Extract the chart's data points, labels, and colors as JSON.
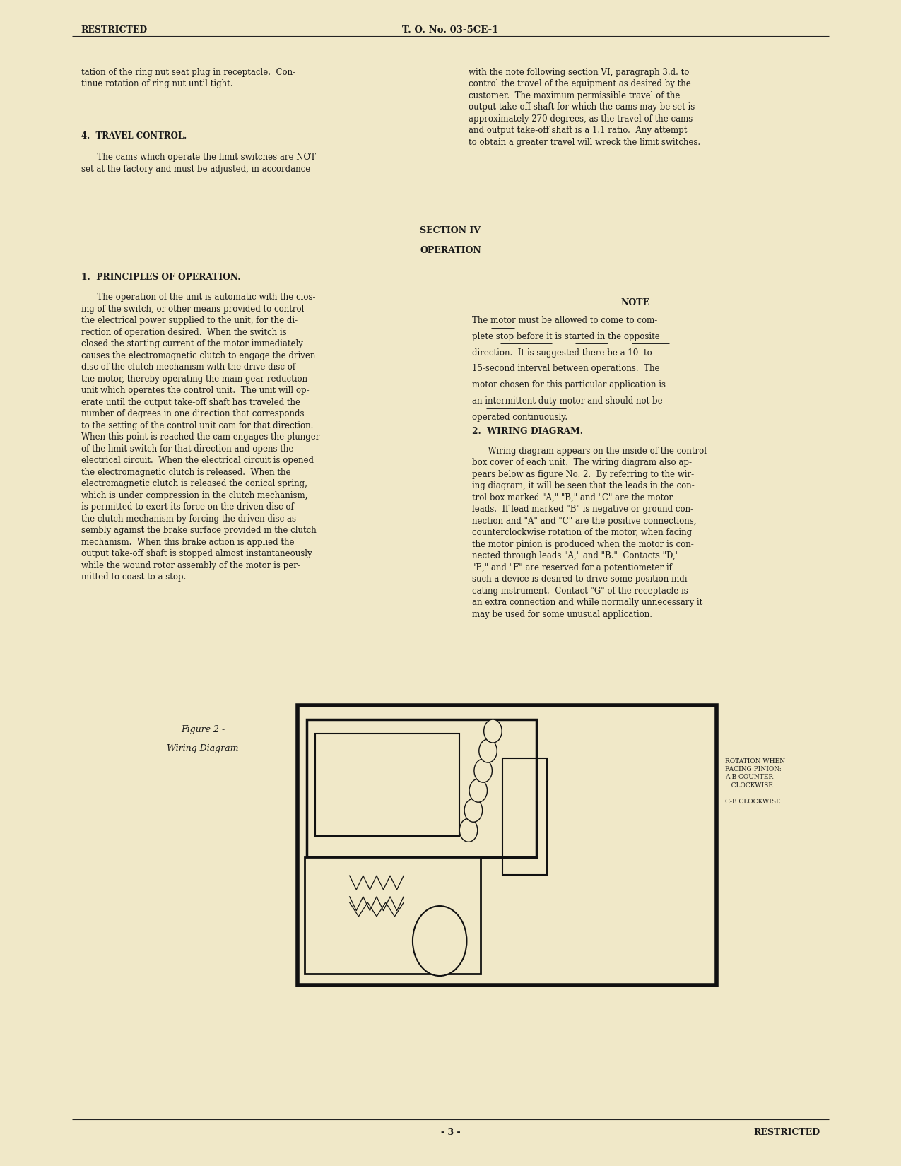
{
  "bg_color": "#f0e8c8",
  "text_color": "#1a1a1a",
  "header_restricted_left": "RESTRICTED",
  "header_to_center": "T. O. No. 03-5CE-1",
  "footer_page_num": "- 3 -",
  "footer_restricted_right": "RESTRICTED",
  "para_intro_col1": "tation of the ring nut seat plug in receptacle.  Con-\ntinue rotation of ring nut until tight.",
  "para_intro_col2": "with the note following section VI, paragraph 3.d. to\ncontrol the travel of the equipment as desired by the\ncustomer.  The maximum permissible travel of the\noutput take-off shaft for which the cams may be set is\napproximately 270 degrees, as the travel of the cams\nand output take-off shaft is a 1.1 ratio.  Any attempt\nto obtain a greater travel will wreck the limit switches.",
  "section_heading": "SECTION IV",
  "operation_heading": "OPERATION",
  "principles_heading": "1.  PRINCIPLES OF OPERATION.",
  "principles_col1_indent": "      The operation of the unit is automatic with the clos-\ning of the switch, or other means provided to control\nthe electrical power supplied to the unit, for the di-\nrection of operation desired.  When the switch is\nclosed the starting current of the motor immediately\ncauses the electromagnetic clutch to engage the driven\ndisc of the clutch mechanism with the drive disc of\nthe motor, thereby operating the main gear reduction\nunit which operates the control unit.  The unit will op-\nerate until the output take-off shaft has traveled the\nnumber of degrees in one direction that corresponds\nto the setting of the control unit cam for that direction.\nWhen this point is reached the cam engages the plunger\nof the limit switch for that direction and opens the\nelectrical circuit.  When the electrical circuit is opened\nthe electromagnetic clutch is released.  When the\nelectromagnetic clutch is released the conical spring,\nwhich is under compression in the clutch mechanism,\nis permitted to exert its force on the driven disc of\nthe clutch mechanism by forcing the driven disc as-\nsembly against the brake surface provided in the clutch\nmechanism.  When this brake action is applied the\noutput take-off shaft is stopped almost instantaneously\nwhile the wound rotor assembly of the motor is per-\nmitted to coast to a stop.",
  "note_heading": "NOTE",
  "note_line1": "The motor must be allowed to come to com-",
  "note_line2": "plete stop before it is started in the opposite",
  "note_line3": "direction.  It is suggested there be a 10- to",
  "note_line4": "15-second interval between operations.  The",
  "note_line5": "motor chosen for this particular application is",
  "note_line6": "an intermittent duty motor and should not be",
  "note_line7": "operated continuously.",
  "wiring_heading": "2.  WIRING DIAGRAM.",
  "wiring_col2": "      Wiring diagram appears on the inside of the control\nbox cover of each unit.  The wiring diagram also ap-\npears below as figure No. 2.  By referring to the wir-\ning diagram, it will be seen that the leads in the con-\ntrol box marked \"A,\" \"B,\" and \"C\" are the motor\nleads.  If lead marked \"B\" is negative or ground con-\nnection and \"A\" and \"C\" are the positive connections,\ncounterclockwise rotation of the motor, when facing\nthe motor pinion is produced when the motor is con-\nnected through leads \"A,\" and \"B.\"  Contacts \"D,\"\n\"E,\" and \"F\" are reserved for a potentiometer if\nsuch a device is desired to drive some position indi-\ncating instrument.  Contact \"G\" of the receptacle is\nan extra connection and while normally unnecessary it\nmay be used for some unusual application.",
  "figure_caption_line1": "Figure 2 -",
  "figure_caption_line2": "Wiring Diagram",
  "travel_heading": "4.  TRAVEL CONTROL.",
  "travel_col1": "      The cams which operate the limit switches are NOT\nset at the factory and must be adjusted, in accordance"
}
